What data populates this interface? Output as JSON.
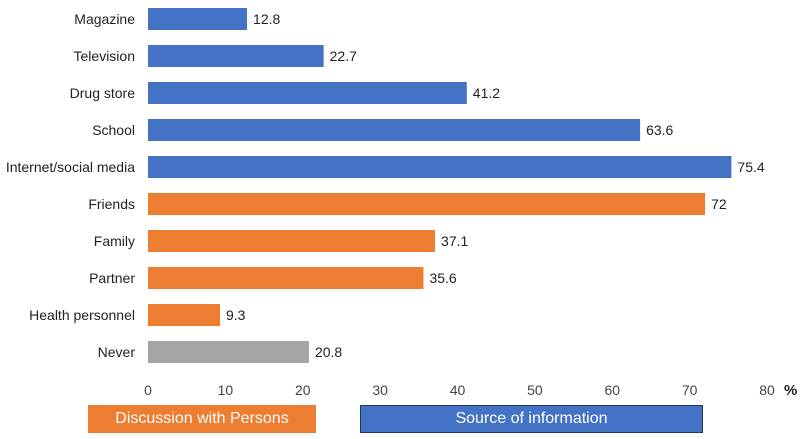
{
  "chart_data": {
    "type": "bar",
    "orientation": "horizontal",
    "title": "",
    "xlabel": "",
    "ylabel": "",
    "x_unit": "%",
    "xlim": [
      0,
      80
    ],
    "xticks": [
      0,
      10,
      20,
      30,
      40,
      50,
      60,
      70,
      80
    ],
    "grid": false,
    "categories": [
      "Magazine",
      "Television",
      "Drug store",
      "School",
      "Internet/social media",
      "Friends",
      "Family",
      "Partner",
      "Health personnel",
      "Never"
    ],
    "values": [
      12.8,
      22.7,
      41.2,
      63.6,
      75.4,
      72,
      37.1,
      35.6,
      9.3,
      20.8
    ],
    "value_labels": [
      "12.8",
      "22.7",
      "41.2",
      "63.6",
      "75.4",
      "72",
      "37.1",
      "35.6",
      "9.3",
      "20.8"
    ],
    "groups": [
      "source",
      "source",
      "source",
      "source",
      "source",
      "discussion",
      "discussion",
      "discussion",
      "discussion",
      "never"
    ],
    "colors": {
      "source": "#4472c4",
      "discussion": "#ed7d31",
      "never": "#a5a5a5"
    },
    "legend": [
      {
        "key": "discussion",
        "label": "Discussion with Persons",
        "color": "#ed7d31"
      },
      {
        "key": "source",
        "label": "Source of information",
        "color": "#4472c4"
      }
    ]
  }
}
